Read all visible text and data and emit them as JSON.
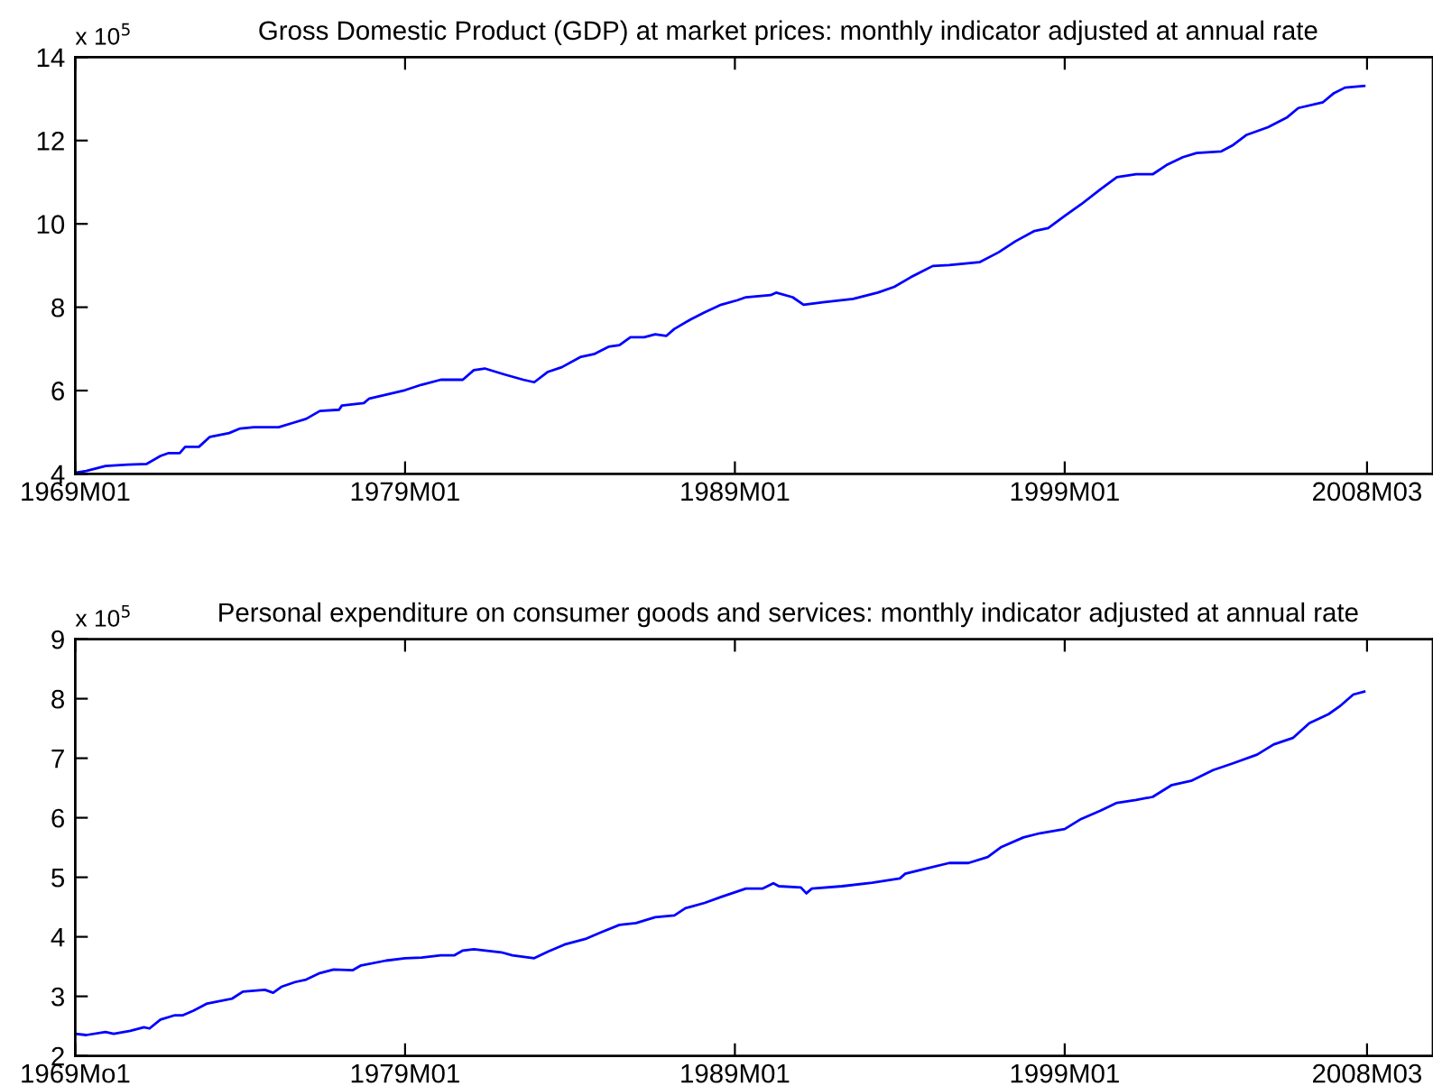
{
  "chart_data": [
    {
      "type": "line",
      "title": "Gross Domestic Product (GDP) at market prices: monthly indicator adjusted at annual rate",
      "annotations": [
        "x 10$^{5}$"
      ],
      "color": "#0000ff",
      "x": [
        "1969-01",
        "1969-05",
        "1969-12",
        "1970-08",
        "1971-03",
        "1971-08",
        "1971-11",
        "1972-03",
        "1972-05",
        "1972-10",
        "1973-02",
        "1973-09",
        "1974-01",
        "1974-06",
        "1975-03",
        "1975-08",
        "1976-01",
        "1976-06",
        "1977-01",
        "1977-02",
        "1977-10",
        "1977-12",
        "1978-06",
        "1979-01",
        "1979-07",
        "1980-02",
        "1980-10",
        "1981-02",
        "1981-06",
        "1982-01",
        "1982-08",
        "1982-12",
        "1983-05",
        "1983-10",
        "1984-05",
        "1984-10",
        "1985-03",
        "1985-07",
        "1985-11",
        "1986-04",
        "1986-08",
        "1986-12",
        "1987-03",
        "1987-09",
        "1988-02",
        "1988-08",
        "1989-02",
        "1989-05",
        "1990-02",
        "1990-04",
        "1990-10",
        "1991-02",
        "1991-09",
        "1992-08",
        "1993-05",
        "1993-11",
        "1994-05",
        "1995-01",
        "1995-07",
        "1996-06",
        "1997-01",
        "1997-07",
        "1998-02",
        "1998-07",
        "1999-01",
        "1999-07",
        "2000-02",
        "2000-08",
        "2001-03",
        "2001-09",
        "2002-02",
        "2002-08",
        "2003-01",
        "2003-10",
        "2004-02",
        "2004-07",
        "2005-03",
        "2005-10",
        "2006-02",
        "2006-11",
        "2007-03",
        "2007-07",
        "2008-02"
      ],
      "values": [
        4.03,
        4.07,
        4.19,
        4.22,
        4.24,
        4.43,
        4.5,
        4.5,
        4.65,
        4.65,
        4.89,
        4.98,
        5.09,
        5.12,
        5.12,
        5.22,
        5.32,
        5.51,
        5.54,
        5.64,
        5.7,
        5.81,
        5.9,
        6.01,
        6.14,
        6.26,
        6.26,
        6.49,
        6.53,
        6.39,
        6.26,
        6.2,
        6.45,
        6.56,
        6.81,
        6.88,
        7.05,
        7.09,
        7.28,
        7.28,
        7.35,
        7.31,
        7.48,
        7.71,
        7.88,
        8.06,
        8.17,
        8.24,
        8.29,
        8.35,
        8.24,
        8.06,
        8.12,
        8.2,
        8.35,
        8.49,
        8.72,
        8.99,
        9.01,
        9.08,
        9.32,
        9.58,
        9.83,
        9.9,
        10.19,
        10.47,
        10.83,
        11.12,
        11.19,
        11.19,
        11.41,
        11.6,
        11.7,
        11.74,
        11.88,
        12.13,
        12.32,
        12.56,
        12.78,
        12.92,
        13.14,
        13.27,
        13.31
      ],
      "xlim": [
        "1969-01",
        "2010-03"
      ],
      "xticks": [
        {
          "value": "1969-01",
          "label": "1969M01"
        },
        {
          "value": "1979-01",
          "label": "1979M01"
        },
        {
          "value": "1989-01",
          "label": "1989M01"
        },
        {
          "value": "1999-01",
          "label": "1999M01"
        },
        {
          "value": "2008-03",
          "label": "2008M03"
        }
      ],
      "ylim": [
        4,
        14
      ],
      "yticks": [
        4,
        6,
        8,
        10,
        12,
        14
      ]
    },
    {
      "type": "line",
      "title": "Personal expenditure on consumer goods and services: monthly indicator adjusted at annual rate",
      "annotations": [
        "x 10$^{5}$"
      ],
      "color": "#0000ff",
      "x": [
        "1969-01",
        "1969-05",
        "1969-12",
        "1970-03",
        "1970-09",
        "1971-02",
        "1971-04",
        "1971-08",
        "1972-01",
        "1972-04",
        "1972-08",
        "1973-01",
        "1973-10",
        "1974-02",
        "1974-10",
        "1975-01",
        "1975-04",
        "1975-09",
        "1976-01",
        "1976-06",
        "1976-11",
        "1977-06",
        "1977-09",
        "1978-06",
        "1979-01",
        "1979-07",
        "1980-02",
        "1980-07",
        "1980-10",
        "1981-02",
        "1981-12",
        "1982-04",
        "1982-12",
        "1983-05",
        "1983-11",
        "1984-07",
        "1984-12",
        "1985-07",
        "1986-01",
        "1986-08",
        "1987-03",
        "1987-07",
        "1988-02",
        "1988-08",
        "1989-05",
        "1989-11",
        "1990-03",
        "1990-05",
        "1991-01",
        "1991-03",
        "1991-05",
        "1992-04",
        "1993-03",
        "1994-01",
        "1994-03",
        "1994-10",
        "1995-07",
        "1996-02",
        "1996-09",
        "1997-02",
        "1997-10",
        "1998-04",
        "1999-01",
        "1999-07",
        "2000-02",
        "2000-08",
        "2001-03",
        "2001-09",
        "2002-04",
        "2002-11",
        "2003-07",
        "2004-02",
        "2004-11",
        "2005-05",
        "2005-12",
        "2006-06",
        "2007-01",
        "2007-05",
        "2007-10",
        "2008-02"
      ],
      "values": [
        2.37,
        2.35,
        2.4,
        2.37,
        2.42,
        2.48,
        2.46,
        2.61,
        2.68,
        2.68,
        2.76,
        2.88,
        2.96,
        3.08,
        3.11,
        3.06,
        3.16,
        3.24,
        3.28,
        3.39,
        3.45,
        3.44,
        3.52,
        3.6,
        3.64,
        3.65,
        3.69,
        3.69,
        3.77,
        3.79,
        3.74,
        3.69,
        3.64,
        3.75,
        3.87,
        3.97,
        4.07,
        4.2,
        4.23,
        4.33,
        4.36,
        4.48,
        4.57,
        4.67,
        4.81,
        4.81,
        4.9,
        4.85,
        4.83,
        4.73,
        4.81,
        4.85,
        4.91,
        4.98,
        5.06,
        5.14,
        5.24,
        5.24,
        5.34,
        5.51,
        5.67,
        5.74,
        5.81,
        5.98,
        6.12,
        6.25,
        6.3,
        6.35,
        6.55,
        6.62,
        6.8,
        6.91,
        7.06,
        7.23,
        7.34,
        7.59,
        7.74,
        7.87,
        8.07,
        8.12
      ],
      "xlim": [
        "1969-01",
        "2010-03"
      ],
      "xticks": [
        {
          "value": "1969-01",
          "label": "1969Mo1"
        },
        {
          "value": "1979-01",
          "label": "1979M01"
        },
        {
          "value": "1989-01",
          "label": "1989M01"
        },
        {
          "value": "1999-01",
          "label": "1999M01"
        },
        {
          "value": "2008-03",
          "label": "2008M03"
        }
      ],
      "ylim": [
        2,
        9
      ],
      "yticks": [
        2,
        3,
        4,
        5,
        6,
        7,
        8,
        9
      ]
    }
  ]
}
